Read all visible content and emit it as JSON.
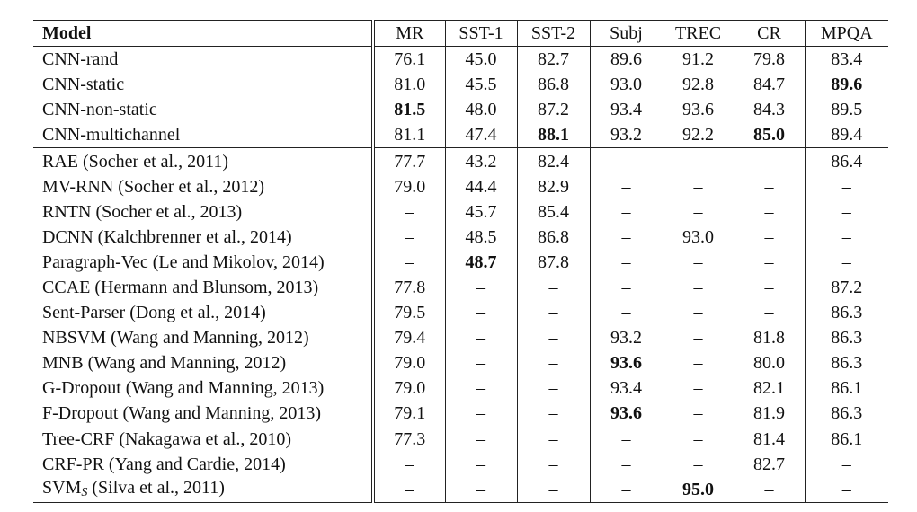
{
  "table": {
    "header": {
      "model": "Model",
      "columns": [
        "MR",
        "SST-1",
        "SST-2",
        "Subj",
        "TREC",
        "CR",
        "MPQA"
      ]
    },
    "cnn_rows": [
      {
        "model": "CNN-rand",
        "values": [
          "76.1",
          "45.0",
          "82.7",
          "89.6",
          "91.2",
          "79.8",
          "83.4"
        ],
        "bold": []
      },
      {
        "model": "CNN-static",
        "values": [
          "81.0",
          "45.5",
          "86.8",
          "93.0",
          "92.8",
          "84.7",
          "89.6"
        ],
        "bold": [
          6
        ]
      },
      {
        "model": "CNN-non-static",
        "values": [
          "81.5",
          "48.0",
          "87.2",
          "93.4",
          "93.6",
          "84.3",
          "89.5"
        ],
        "bold": [
          0
        ]
      },
      {
        "model": "CNN-multichannel",
        "values": [
          "81.1",
          "47.4",
          "88.1",
          "93.2",
          "92.2",
          "85.0",
          "89.4"
        ],
        "bold": [
          2,
          5
        ]
      }
    ],
    "baseline_rows": [
      {
        "model": "RAE (Socher et al., 2011)",
        "values": [
          "77.7",
          "43.2",
          "82.4",
          "–",
          "–",
          "–",
          "86.4"
        ],
        "bold": []
      },
      {
        "model": "MV-RNN (Socher et al., 2012)",
        "values": [
          "79.0",
          "44.4",
          "82.9",
          "–",
          "–",
          "–",
          "–"
        ],
        "bold": []
      },
      {
        "model": "RNTN (Socher et al., 2013)",
        "values": [
          "–",
          "45.7",
          "85.4",
          "–",
          "–",
          "–",
          "–"
        ],
        "bold": []
      },
      {
        "model": "DCNN (Kalchbrenner et al., 2014)",
        "values": [
          "–",
          "48.5",
          "86.8",
          "–",
          "93.0",
          "–",
          "–"
        ],
        "bold": []
      },
      {
        "model": "Paragraph-Vec (Le and Mikolov, 2014)",
        "values": [
          "–",
          "48.7",
          "87.8",
          "–",
          "–",
          "–",
          "–"
        ],
        "bold": [
          1
        ]
      },
      {
        "model": "CCAE (Hermann and Blunsom, 2013)",
        "values": [
          "77.8",
          "–",
          "–",
          "–",
          "–",
          "–",
          "87.2"
        ],
        "bold": []
      },
      {
        "model": "Sent-Parser (Dong et al., 2014)",
        "values": [
          "79.5",
          "–",
          "–",
          "–",
          "–",
          "–",
          "86.3"
        ],
        "bold": []
      },
      {
        "model": "NBSVM (Wang and Manning, 2012)",
        "values": [
          "79.4",
          "–",
          "–",
          "93.2",
          "–",
          "81.8",
          "86.3"
        ],
        "bold": []
      },
      {
        "model": "MNB (Wang and Manning, 2012)",
        "values": [
          "79.0",
          "–",
          "–",
          "93.6",
          "–",
          "80.0",
          "86.3"
        ],
        "bold": [
          3
        ]
      },
      {
        "model": "G-Dropout (Wang and Manning, 2013)",
        "values": [
          "79.0",
          "–",
          "–",
          "93.4",
          "–",
          "82.1",
          "86.1"
        ],
        "bold": []
      },
      {
        "model": "F-Dropout (Wang and Manning, 2013)",
        "values": [
          "79.1",
          "–",
          "–",
          "93.6",
          "–",
          "81.9",
          "86.3"
        ],
        "bold": [
          3
        ]
      },
      {
        "model": "Tree-CRF (Nakagawa et al., 2010)",
        "values": [
          "77.3",
          "–",
          "–",
          "–",
          "–",
          "81.4",
          "86.1"
        ],
        "bold": []
      },
      {
        "model": "CRF-PR (Yang and Cardie, 2014)",
        "values": [
          "–",
          "–",
          "–",
          "–",
          "–",
          "82.7",
          "–"
        ],
        "bold": []
      },
      {
        "model": "SVM",
        "model_sub": "S",
        "model_tail": " (Silva et al., 2011)",
        "values": [
          "–",
          "–",
          "–",
          "–",
          "95.0",
          "–",
          "–"
        ],
        "bold": [
          4
        ]
      }
    ]
  }
}
